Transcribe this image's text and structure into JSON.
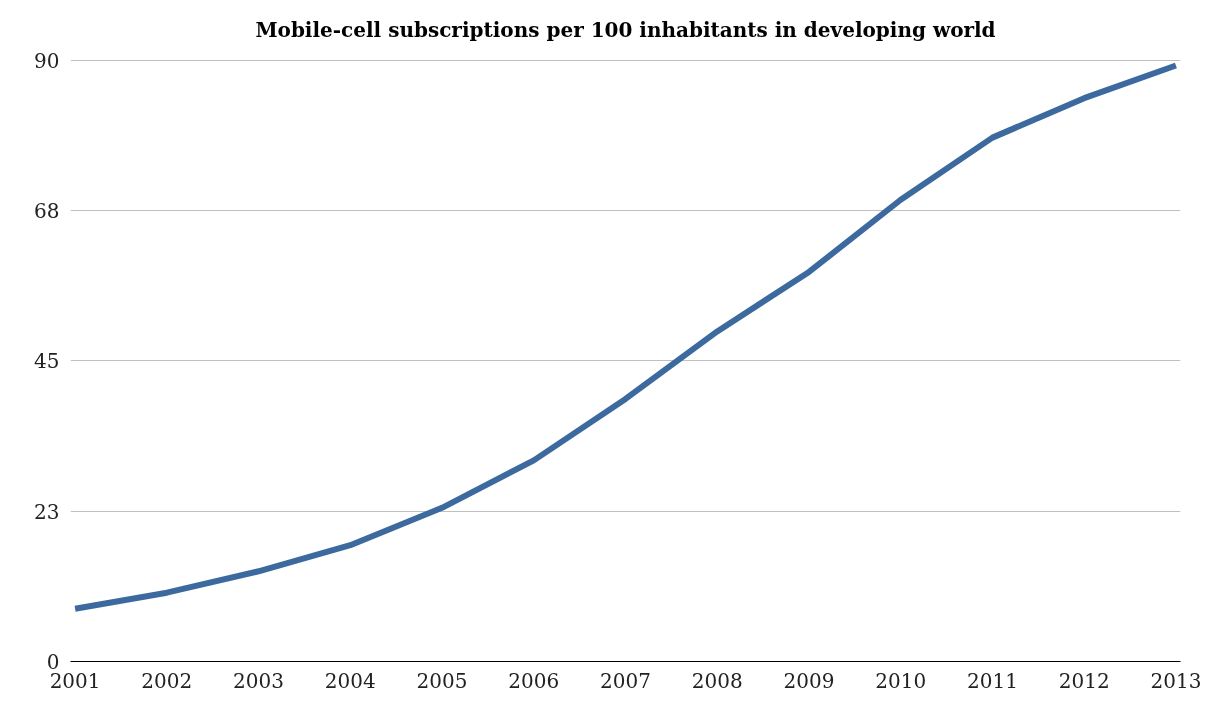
{
  "chart_data": {
    "type": "line",
    "title": "Mobile-cell subscriptions per 100 inhabitants in developing world",
    "categories": [
      "2001",
      "2002",
      "2003",
      "2004",
      "2005",
      "2006",
      "2007",
      "2008",
      "2009",
      "2010",
      "2011",
      "2012",
      "2013"
    ],
    "series": [
      {
        "color": "#3d6a9e",
        "values": [
          7.9,
          10.3,
          13.5,
          17.4,
          23.0,
          30.1,
          39.3,
          49.4,
          58.3,
          69.1,
          78.4,
          84.3,
          89.2
        ]
      }
    ],
    "ylim": [
      0,
      90
    ],
    "yticks": [
      0,
      {
        "value": 22.5,
        "label": "23"
      },
      45,
      {
        "value": 67.5,
        "label": "68"
      },
      90
    ],
    "grid": "y",
    "marker": "none",
    "line_style": "solid"
  }
}
